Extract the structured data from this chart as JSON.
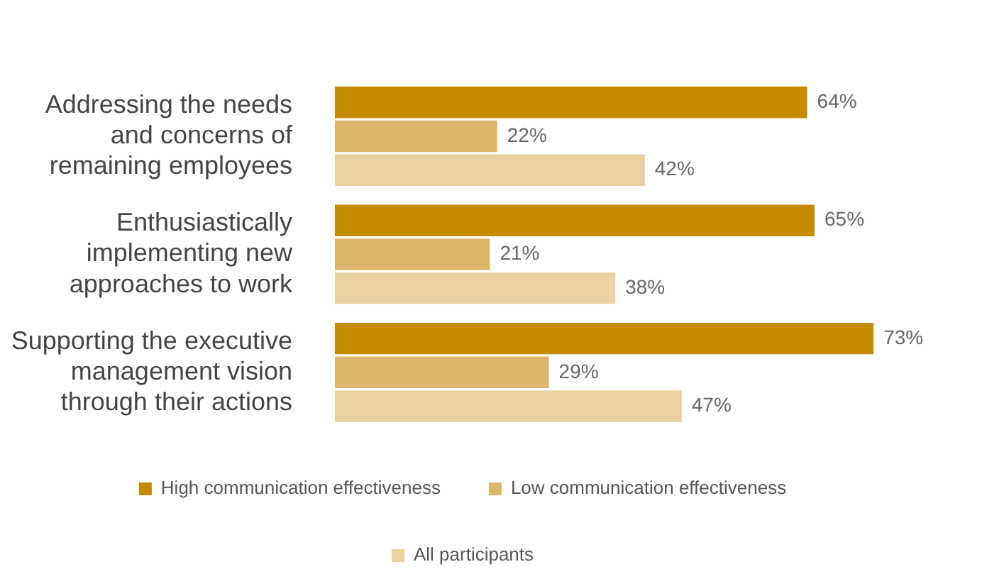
{
  "chart_data": {
    "type": "bar",
    "orientation": "horizontal",
    "categories": [
      "Addressing the needs and concerns of remaining employees",
      "Enthusiastically implementing new approaches to work",
      "Supporting the executive management vision through their actions"
    ],
    "series": [
      {
        "name": "High communication effectiveness",
        "color": "#c68a00",
        "values": [
          64,
          65,
          73
        ],
        "value_labels": [
          "64%",
          "65%",
          "73%"
        ]
      },
      {
        "name": "Low communication effectiveness",
        "color": "#ddb56b",
        "values": [
          22,
          21,
          29
        ],
        "value_labels": [
          "22%",
          "21%",
          "29%"
        ]
      },
      {
        "name": "All participants",
        "color": "#e9d1a0",
        "values": [
          42,
          38,
          47
        ],
        "value_labels": [
          "42%",
          "38%",
          "47%"
        ]
      }
    ],
    "tick_labels": "y",
    "legend": "bottom"
  }
}
